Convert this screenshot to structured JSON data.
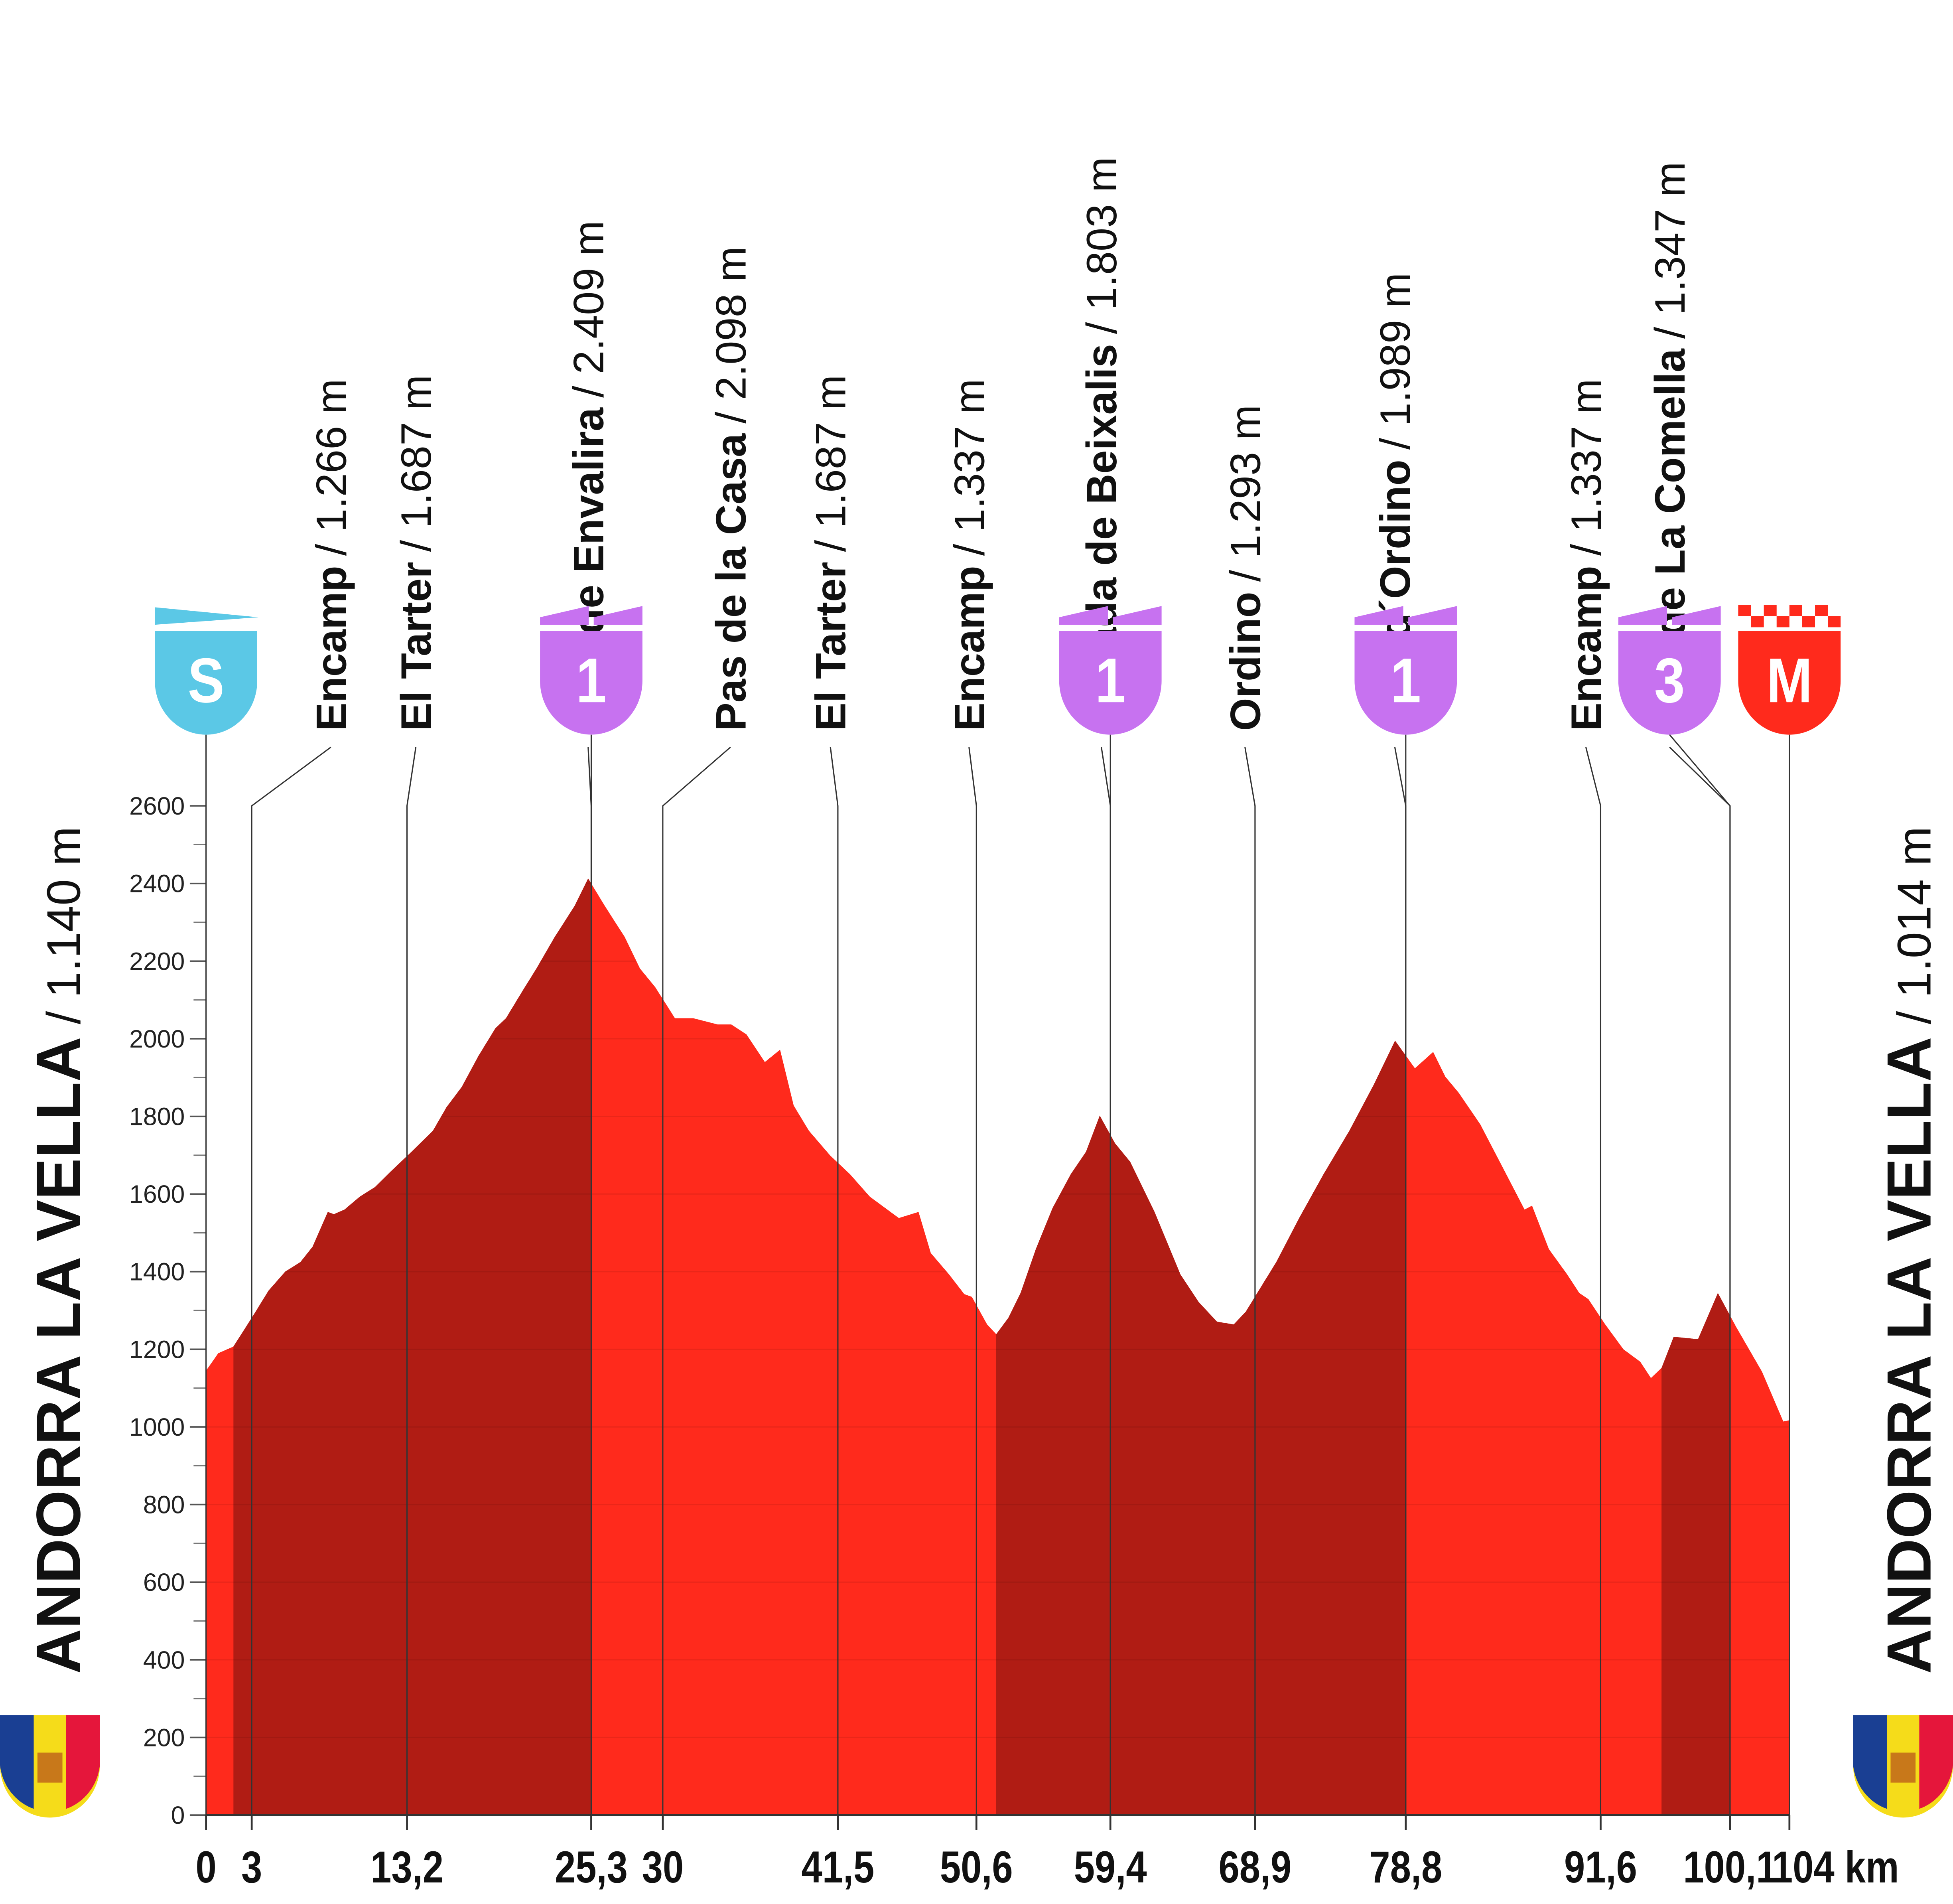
{
  "chart_data": {
    "type": "profile",
    "x": [
      0,
      0.8,
      1.8,
      3.1,
      4.1,
      5.2,
      6.2,
      7,
      8,
      8.4,
      9.1,
      10.1,
      11.1,
      12.1,
      13.5,
      14.9,
      15.8,
      16.8,
      17.9,
      19,
      19.7,
      20.8,
      21.7,
      22.9,
      24.2,
      25.1,
      26.2,
      27.5,
      28.5,
      29.5,
      30.8,
      32,
      33.6,
      34.5,
      35.5,
      36.7,
      37.7,
      38.6,
      39.6,
      41,
      42.3,
      43.6,
      45.5,
      46.8,
      47.6,
      48.8,
      49.8,
      50.3,
      51.3,
      51.9,
      52.7,
      53.5,
      54.5,
      55.6,
      56.8,
      57.8,
      58.7,
      59.7,
      60.7,
      62.3,
      64,
      65.2,
      66.4,
      67.5,
      68.3,
      69.3,
      70.3,
      71.8,
      73.4,
      75.1,
      76.7,
      78.1,
      79.4,
      80.6,
      81.4,
      82.3,
      83.7,
      84.9,
      86.6,
      87.1,
      88.2,
      89.4,
      90.2,
      90.8,
      91.9,
      93.1,
      94.2,
      94.9,
      95.6,
      96.4,
      98,
      99.3,
      100.5,
      102.2,
      103.6,
      104
    ],
    "values": [
      1145,
      1190,
      1207,
      1287,
      1351,
      1400,
      1425,
      1464,
      1554,
      1548,
      1560,
      1593,
      1618,
      1657,
      1709,
      1763,
      1824,
      1876,
      1956,
      2027,
      2053,
      2124,
      2181,
      2262,
      2342,
      2413,
      2342,
      2262,
      2181,
      2133,
      2053,
      2053,
      2037,
      2037,
      2011,
      1940,
      1972,
      1828,
      1763,
      1699,
      1651,
      1593,
      1538,
      1554,
      1448,
      1393,
      1342,
      1335,
      1264,
      1239,
      1281,
      1345,
      1458,
      1564,
      1651,
      1709,
      1802,
      1731,
      1683,
      1554,
      1393,
      1322,
      1271,
      1264,
      1297,
      1361,
      1425,
      1538,
      1651,
      1763,
      1882,
      1995,
      1924,
      1966,
      1902,
      1860,
      1779,
      1689,
      1560,
      1570,
      1458,
      1393,
      1345,
      1329,
      1264,
      1200,
      1168,
      1126,
      1152,
      1232,
      1226,
      1345,
      1258,
      1142,
      1014,
      1017
    ],
    "color": "#ff2a1c",
    "band_color": "#b01c14",
    "bands": [
      {
        "from": 1.8,
        "to": 25.3
      },
      {
        "from": 51.9,
        "to": 78.8
      },
      {
        "from": 95.6,
        "to": 100.1
      }
    ],
    "xlim": [
      0,
      104
    ],
    "ylim": [
      0,
      2600
    ],
    "xticks": [
      0,
      3,
      {
        "value": 13.2,
        "label": "13,2"
      },
      {
        "value": 25.3,
        "label": "25,3"
      },
      30,
      {
        "value": 41.5,
        "label": "41,5"
      },
      {
        "value": 50.6,
        "label": "50,6"
      },
      {
        "value": 59.4,
        "label": "59,4"
      },
      {
        "value": 68.9,
        "label": "68,9"
      },
      {
        "value": 78.8,
        "label": "78,8"
      },
      {
        "value": 91.6,
        "label": "91,6"
      },
      {
        "value": 100.1,
        "label": "100,1"
      },
      {
        "value": 104,
        "label": "104 km"
      }
    ],
    "yticks": [
      0,
      200,
      400,
      600,
      800,
      1000,
      1200,
      1400,
      1600,
      1800,
      2000,
      2200,
      2400,
      2600
    ],
    "landmarks": [
      {
        "name": "Encamp",
        "alt": "/ 1.266 m",
        "km": 3
      },
      {
        "name": "El Tarter",
        "alt": "/ 1.687 m",
        "km": 13.2
      },
      {
        "name": "Port de Envalira",
        "alt": "/ 2.409 m",
        "km": 25.3
      },
      {
        "name": "Pas de la Casa",
        "alt": "/ 2.098 m",
        "km": 30
      },
      {
        "name": "El Tarter",
        "alt": "/ 1.687 m",
        "km": 41.5
      },
      {
        "name": "Encamp",
        "alt": "/ 1.337 m",
        "km": 50.6
      },
      {
        "name": "Collada de Beixalis",
        "alt": "/ 1.803 m",
        "km": 59.4
      },
      {
        "name": "Ordino",
        "alt": "/ 1.293 m",
        "km": 68.9
      },
      {
        "name": "Coll d´Ordino",
        "alt": "/ 1.989 m",
        "km": 78.8
      },
      {
        "name": "Encamp",
        "alt": "/ 1.337 m",
        "km": 91.6
      },
      {
        "name": "Alto de La Comella",
        "alt": "/ 1.347 m",
        "km": 100.1
      }
    ],
    "badges": [
      {
        "label": "S",
        "km": 0,
        "color": "#5bc8e6",
        "kind": "start"
      },
      {
        "label": "1",
        "km": 25.3,
        "color": "#c772f0",
        "kind": "climb"
      },
      {
        "label": "1",
        "km": 59.4,
        "color": "#c772f0",
        "kind": "climb"
      },
      {
        "label": "1",
        "km": 78.8,
        "color": "#c772f0",
        "kind": "climb"
      },
      {
        "label": "3",
        "km": 100.1,
        "color": "#c772f0",
        "kind": "climb"
      },
      {
        "label": "M",
        "km": 104,
        "color": "#ff2a1c",
        "kind": "finish"
      }
    ],
    "start": {
      "name": "ANDORRA LA VELLA",
      "alt": "/ 1.140 m"
    },
    "finish": {
      "name": "ANDORRA LA VELLA",
      "alt": "/ 1.014 m"
    }
  }
}
